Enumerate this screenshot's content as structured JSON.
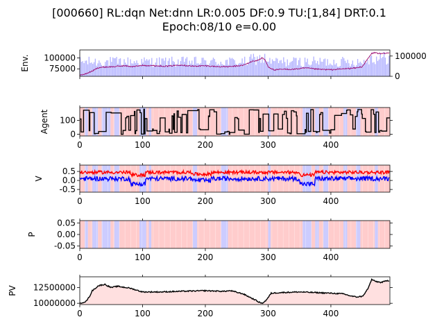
{
  "figure": {
    "title_line1": "[000660] RL:dqn Net:dnn LR:0.005 DF:0.9 TU:[1,84] DRT:0.1",
    "title_line2": "Epoch:08/10 e=0.00"
  },
  "colors": {
    "red": "#ff0000",
    "blue": "#0000ff",
    "black": "#000000",
    "buy_bg": "#ffcccc",
    "sell_bg": "#ccccff",
    "volume_bar": "#b0b0ff",
    "price_line": "#800080",
    "pv_fill": "#ffe0e0"
  },
  "chart_data": [
    {
      "type": "line",
      "panel": "env",
      "ylabel": "Env.",
      "xlim": [
        0,
        494
      ],
      "ylim": [
        58000,
        118000
      ],
      "yticks": [
        "75000",
        "100000"
      ],
      "ytick_values": [
        75000,
        100000
      ],
      "y2ticks": [
        "0",
        "100000"
      ],
      "y2tick_values": [
        0,
        100000
      ],
      "x_points": [
        0,
        10,
        20,
        30,
        40,
        55,
        70,
        85,
        100,
        120,
        140,
        160,
        180,
        200,
        220,
        240,
        260,
        275,
        285,
        290,
        295,
        300,
        310,
        320,
        340,
        360,
        380,
        400,
        420,
        440,
        450,
        460,
        465,
        470,
        480,
        490
      ],
      "price": [
        60000,
        64000,
        70000,
        78000,
        79000,
        80000,
        82000,
        80000,
        83000,
        82000,
        81000,
        84000,
        81000,
        82000,
        80000,
        80000,
        83000,
        92000,
        95000,
        100000,
        96000,
        80000,
        72000,
        74000,
        74000,
        77000,
        74000,
        73000,
        75000,
        77000,
        80000,
        100000,
        110000,
        112000,
        109000,
        111000
      ],
      "volume_bars": "light-blue, 490 bars"
    },
    {
      "type": "line",
      "panel": "agent",
      "ylabel": "Agent",
      "xlim": [
        0,
        494
      ],
      "ylim": [
        -12,
        192
      ],
      "yticks": [
        "0",
        "100"
      ],
      "ytick_values": [
        0,
        100
      ],
      "xticks": [
        "0",
        "100",
        "200",
        "300",
        "400"
      ],
      "xtick_values": [
        0,
        100,
        200,
        300,
        400
      ],
      "holdings_range": [
        0,
        180
      ]
    },
    {
      "type": "line",
      "panel": "v",
      "ylabel": "V",
      "xlim": [
        0,
        494
      ],
      "ylim": [
        -0.65,
        0.85
      ],
      "yticks": [
        "0.5",
        "0.0",
        "-0.5"
      ],
      "ytick_values": [
        0.5,
        0.0,
        -0.5
      ],
      "xticks": [
        "0",
        "100",
        "200",
        "300",
        "400"
      ],
      "xtick_values": [
        0,
        100,
        200,
        300,
        400
      ],
      "series_levels": {
        "red": 0.4,
        "blue": 0.05
      }
    },
    {
      "type": "area",
      "panel": "p",
      "ylabel": "P",
      "xlim": [
        0,
        494
      ],
      "ylim": [
        -0.06,
        0.06
      ],
      "yticks": [
        "0.05",
        "0.00",
        "-0.05"
      ],
      "ytick_values": [
        0.05,
        0.0,
        -0.05
      ],
      "xticks": [
        "0",
        "100",
        "200",
        "300",
        "400"
      ],
      "xtick_values": [
        0,
        100,
        200,
        300,
        400
      ]
    },
    {
      "type": "line",
      "panel": "pv",
      "ylabel": "PV",
      "xlim": [
        0,
        494
      ],
      "ylim": [
        9800000,
        14200000
      ],
      "yticks": [
        "12500000",
        "10000000"
      ],
      "ytick_values": [
        12500000,
        10000000
      ],
      "xticks": [
        "0",
        "100",
        "200",
        "300",
        "400"
      ],
      "xtick_values": [
        0,
        100,
        200,
        300,
        400
      ],
      "x_points": [
        0,
        10,
        15,
        20,
        30,
        40,
        50,
        60,
        80,
        100,
        130,
        160,
        200,
        230,
        240,
        260,
        270,
        280,
        285,
        290,
        295,
        300,
        305,
        320,
        350,
        400,
        420,
        430,
        440,
        450,
        455,
        460,
        465,
        470,
        480,
        490
      ],
      "pv": [
        10000000,
        10300000,
        11000000,
        12000000,
        12800000,
        13000000,
        12500000,
        12700000,
        12400000,
        11800000,
        11800000,
        11900000,
        12000000,
        11900000,
        12000000,
        11500000,
        11000000,
        10500000,
        10200000,
        10000000,
        10300000,
        10900000,
        11600000,
        11700000,
        11800000,
        11600000,
        11500000,
        11200000,
        11000000,
        11100000,
        11700000,
        12500000,
        13800000,
        13500000,
        13300000,
        13600000
      ]
    }
  ]
}
